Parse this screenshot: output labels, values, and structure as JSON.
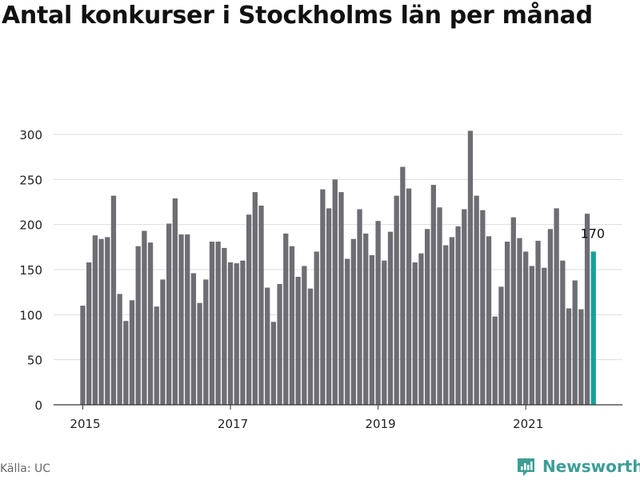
{
  "title": "Antal konkurser i Stockholms län per månad",
  "source": "Källa: UC",
  "brand": {
    "name": "Newsworthy",
    "icon": "bar-chart-logo-icon",
    "color": "#3d9e96"
  },
  "colors": {
    "bar": "#6e6d74",
    "highlight": "#17a19a",
    "grid": "#dddddd",
    "axis": "#333333",
    "tick_text": "#222222"
  },
  "chart_data": {
    "type": "bar",
    "x_start": "2015-01",
    "x_end": "2021-11",
    "values": [
      110,
      158,
      188,
      184,
      186,
      232,
      123,
      93,
      116,
      176,
      193,
      180,
      109,
      139,
      201,
      229,
      189,
      189,
      146,
      113,
      139,
      181,
      181,
      174,
      158,
      157,
      160,
      211,
      236,
      221,
      130,
      92,
      134,
      190,
      176,
      142,
      154,
      129,
      170,
      239,
      218,
      250,
      236,
      162,
      184,
      217,
      190,
      166,
      204,
      160,
      192,
      232,
      264,
      240,
      158,
      168,
      195,
      244,
      219,
      177,
      186,
      198,
      217,
      304,
      232,
      216,
      187,
      98,
      131,
      181,
      208,
      185,
      170,
      154,
      182,
      152,
      195,
      218,
      160,
      107,
      138,
      106,
      212
    ],
    "highlight": {
      "label": "170",
      "value": 170,
      "month": "2021-12"
    },
    "x_ticks": [
      "2015",
      "2017",
      "2019",
      "2021"
    ],
    "y_ticks": [
      "0",
      "50",
      "100",
      "150",
      "200",
      "250",
      "300"
    ],
    "ylim": [
      0,
      300
    ]
  }
}
